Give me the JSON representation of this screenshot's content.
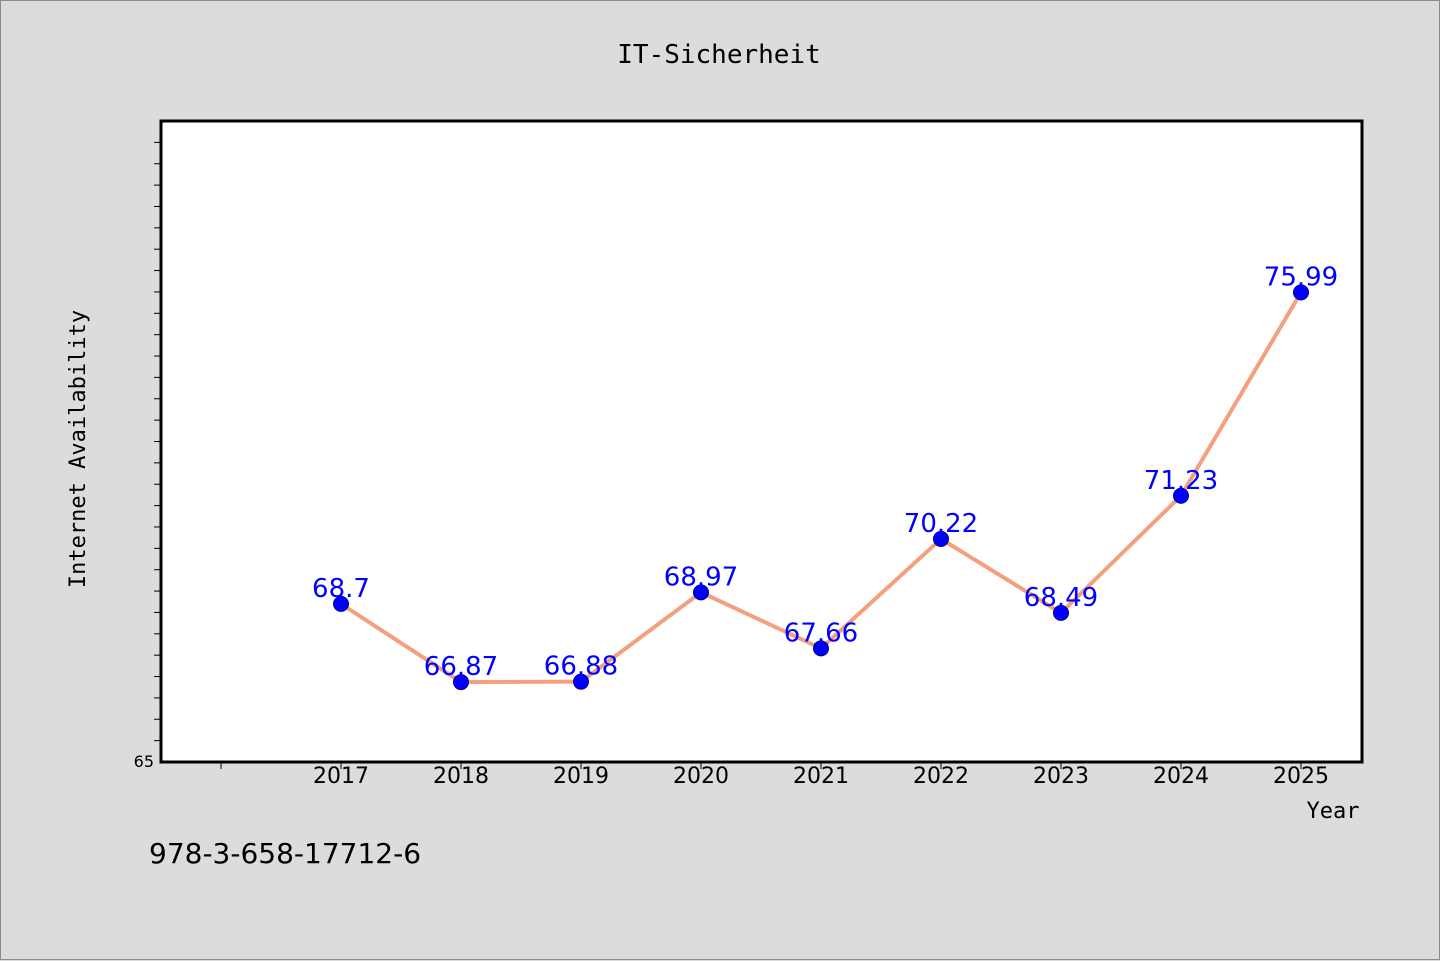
{
  "chart_data": {
    "type": "line",
    "title": "IT-Sicherheit",
    "xlabel": "Year",
    "ylabel": "Internet Availability",
    "categories": [
      "2017",
      "2018",
      "2019",
      "2020",
      "2021",
      "2022",
      "2023",
      "2024",
      "2025"
    ],
    "series": [
      {
        "values": [
          68.7,
          66.87,
          66.88,
          68.97,
          67.66,
          70.22,
          68.49,
          71.23,
          75.99
        ],
        "data_labels": [
          "68.7",
          "66.87",
          "66.88",
          "68.97",
          "67.66",
          "70.22",
          "68.49",
          "71.23",
          "75.99"
        ],
        "line_color": "#f4a07e",
        "marker_color": "#0000ff"
      }
    ],
    "y_tick_labels": [
      "65"
    ],
    "ylim": [
      65,
      80
    ],
    "grid": false,
    "plot_background": "#ffffff",
    "figure_background": "#dcdcdc"
  },
  "footer": {
    "isbn": "978-3-658-17712-6"
  }
}
